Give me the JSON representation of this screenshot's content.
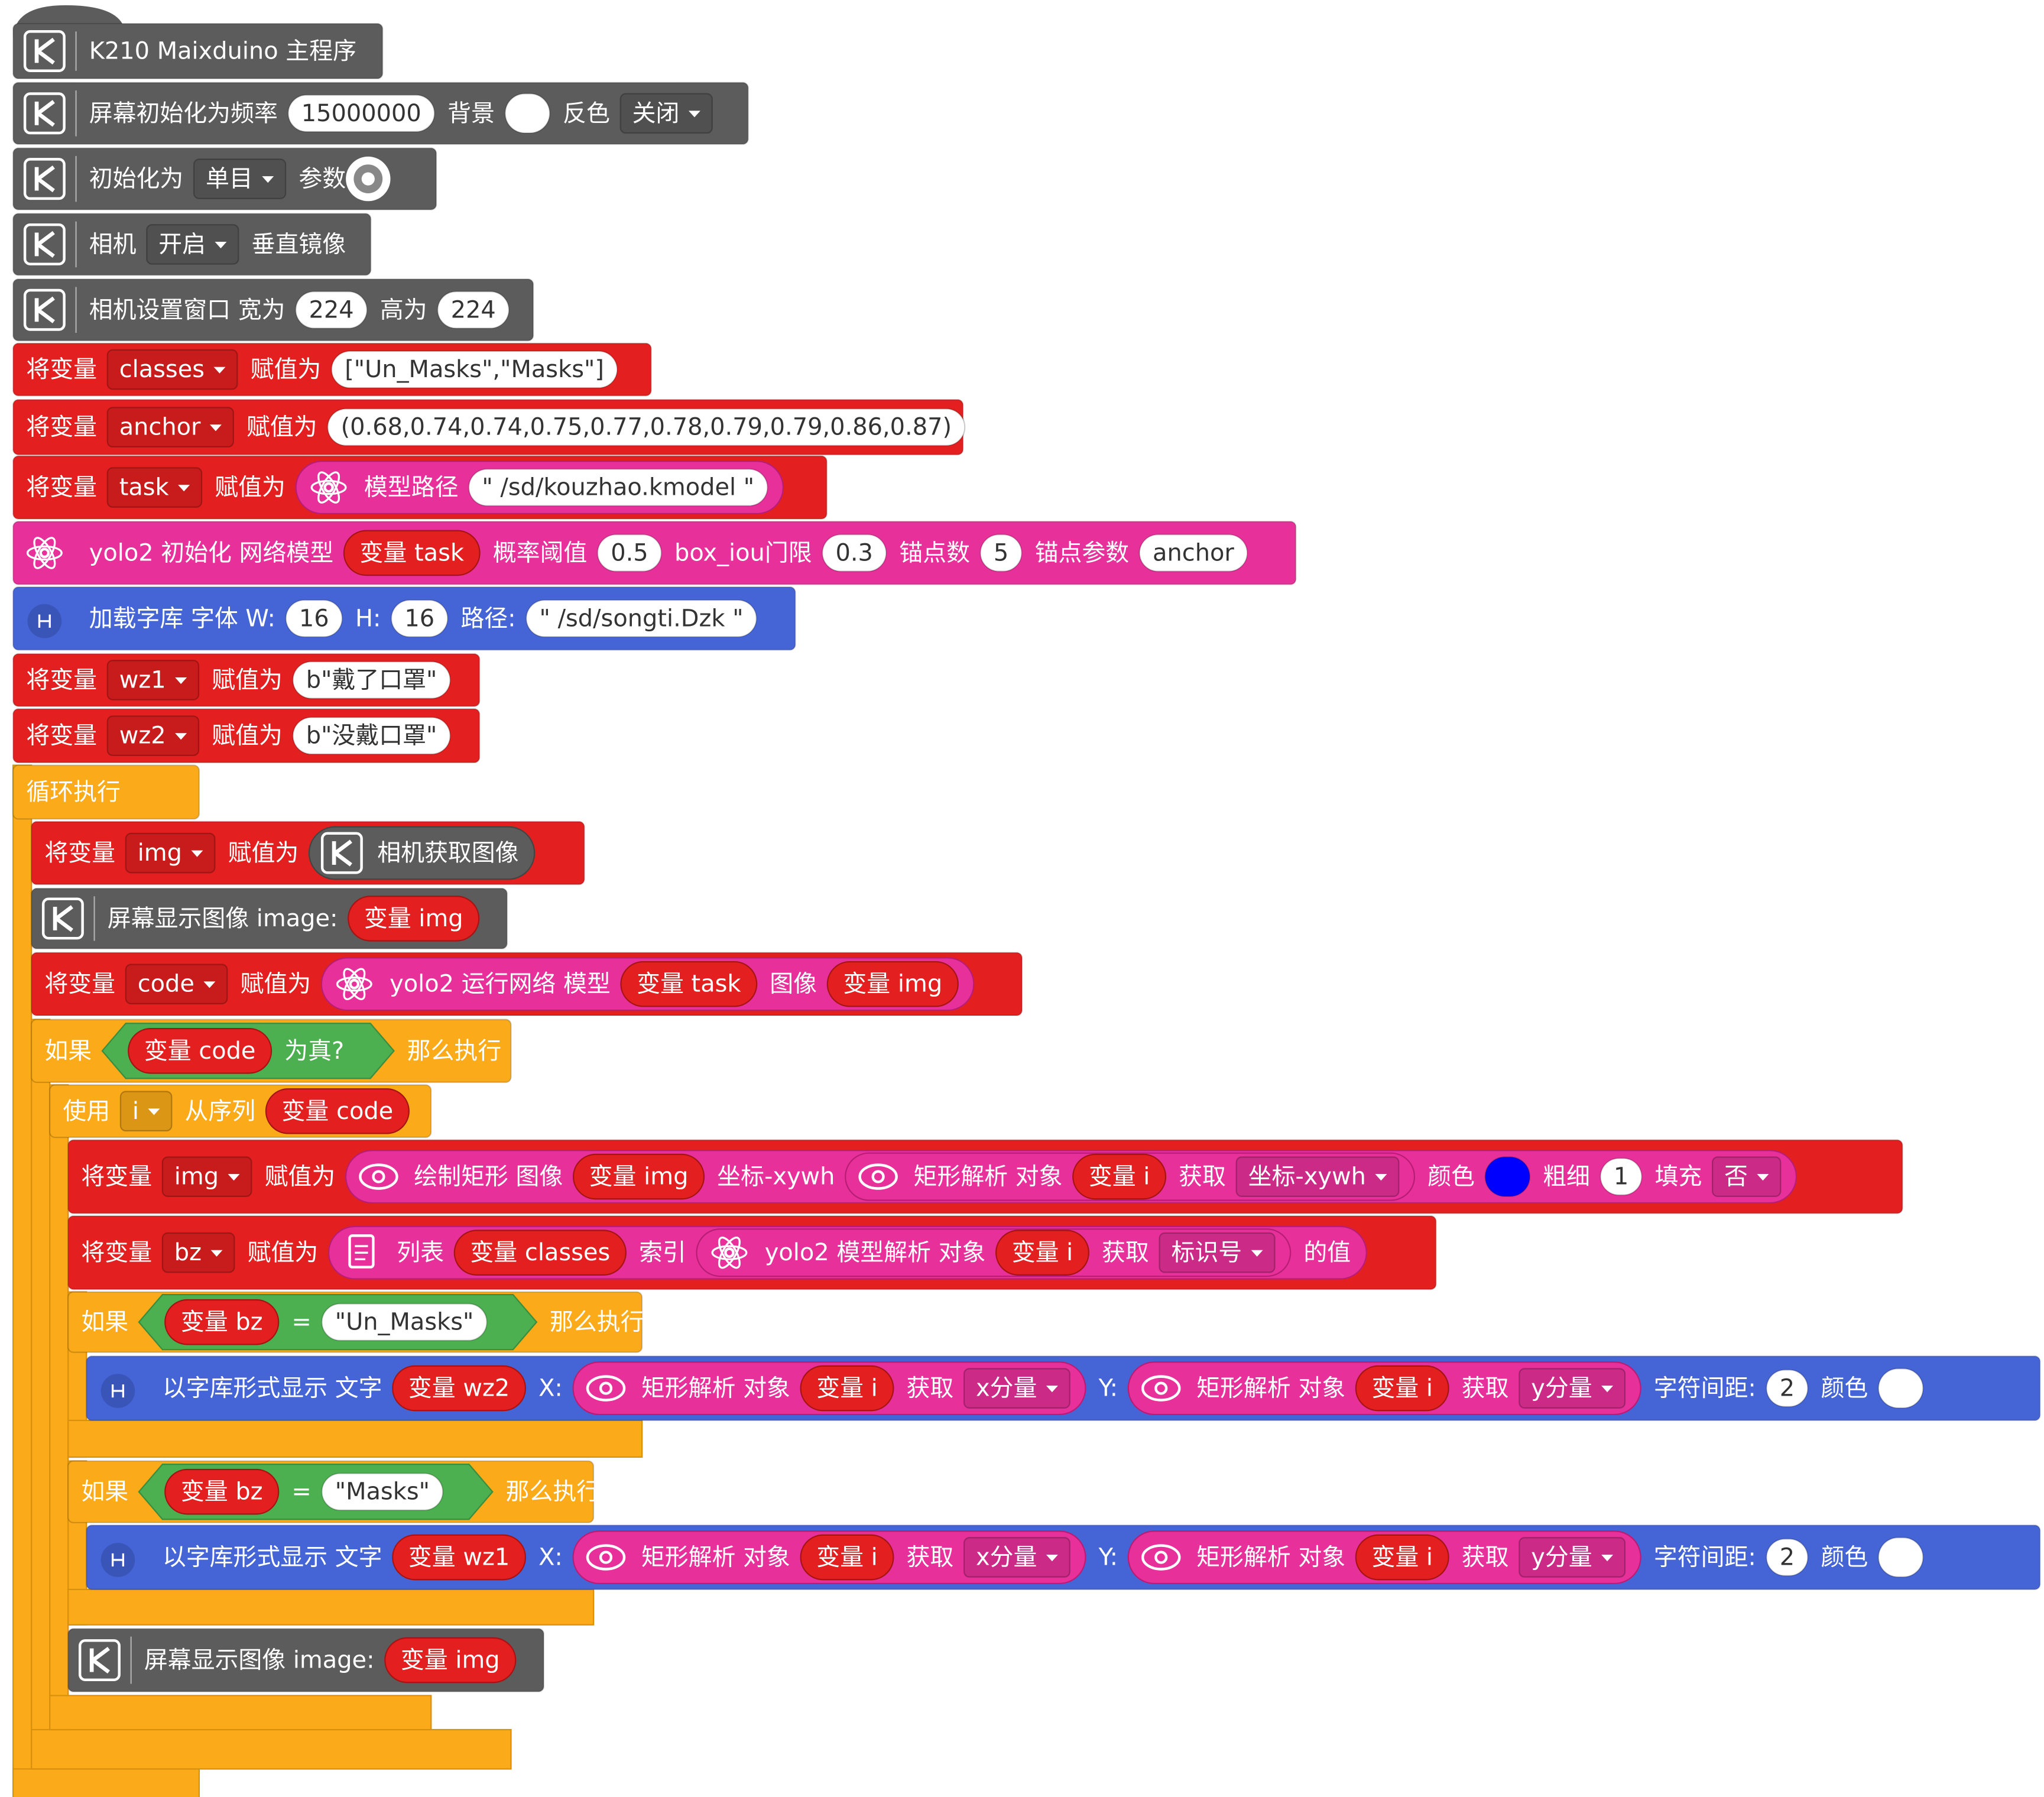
{
  "blocks": [
    {
      "parts": [
        {
          "label": "K210 Maixduino 主程序"
        }
      ]
    },
    {
      "parts": [
        {
          "label": "屏幕初始化为频率"
        },
        {
          "field": "15000000"
        },
        {
          "label": "背景"
        },
        {
          "color": "#ffffff"
        },
        {
          "label": "反色"
        },
        {
          "dropdown": "关闭"
        }
      ]
    },
    {
      "parts": [
        {
          "label": "初始化为"
        },
        {
          "dropdown": "单目"
        },
        {
          "label": "参数"
        }
      ]
    },
    {
      "parts": [
        {
          "label": "相机"
        },
        {
          "dropdown": "开启"
        },
        {
          "label": "垂直镜像"
        }
      ]
    },
    {
      "parts": [
        {
          "label": "相机设置窗口 宽为"
        },
        {
          "field": "224"
        },
        {
          "label": "高为"
        },
        {
          "field": "224"
        }
      ]
    },
    {
      "parts": [
        {
          "label": "将变量"
        },
        {
          "dropdown": "classes"
        },
        {
          "label": "赋值为"
        },
        {
          "field": "[\"Un_Masks\",\"Masks\"]"
        }
      ]
    },
    {
      "parts": [
        {
          "label": "将变量"
        },
        {
          "dropdown": "anchor"
        },
        {
          "label": "赋值为"
        },
        {
          "field": "(0.68,0.74,0.74,0.75,0.77,0.78,0.79,0.79,0.86,0.87)"
        }
      ]
    },
    {
      "parts": [
        {
          "label": "将变量"
        },
        {
          "dropdown": "task"
        },
        {
          "label": "赋值为"
        },
        {
          "block": [
            {
              "label": "模型路径"
            },
            {
              "field": "\" /sd/kouzhao.kmodel \""
            }
          ]
        }
      ]
    },
    {
      "parts": [
        {
          "label": "yolo2 初始化 网络模型"
        },
        {
          "var": "变量 task"
        },
        {
          "label": "概率阈值"
        },
        {
          "field": "0.5"
        },
        {
          "label": "box_iou门限"
        },
        {
          "field": "0.3"
        },
        {
          "label": "锚点数"
        },
        {
          "field": "5"
        },
        {
          "label": "锚点参数"
        },
        {
          "field": "anchor"
        }
      ]
    },
    {
      "parts": [
        {
          "label": "加载字库 字体 W:"
        },
        {
          "field": "16"
        },
        {
          "label": "H:"
        },
        {
          "field": "16"
        },
        {
          "label": "路径:"
        },
        {
          "field": "\" /sd/songti.Dzk \""
        }
      ]
    },
    {
      "parts": [
        {
          "label": "将变量"
        },
        {
          "dropdown": "wz1"
        },
        {
          "label": "赋值为"
        },
        {
          "field": "b\"戴了口罩\""
        }
      ]
    },
    {
      "parts": [
        {
          "label": "将变量"
        },
        {
          "dropdown": "wz2"
        },
        {
          "label": "赋值为"
        },
        {
          "field": "b\"没戴口罩\""
        }
      ]
    },
    {
      "parts": [
        {
          "label": "循环执行"
        }
      ]
    },
    {
      "parts": [
        {
          "label": "将变量"
        },
        {
          "dropdown": "img"
        },
        {
          "label": "赋值为"
        },
        {
          "block": [
            {
              "label": "相机获取图像"
            }
          ]
        }
      ]
    },
    {
      "parts": [
        {
          "label": "屏幕显示图像 image:"
        },
        {
          "var": "变量 img"
        }
      ]
    },
    {
      "parts": [
        {
          "label": "将变量"
        },
        {
          "dropdown": "code"
        },
        {
          "label": "赋值为"
        },
        {
          "block": [
            {
              "label": "yolo2 运行网络 模型"
            },
            {
              "var": "变量 task"
            },
            {
              "label": "图像"
            },
            {
              "var": "变量 img"
            }
          ]
        }
      ]
    },
    {
      "parts": [
        {
          "label": "如果"
        },
        {
          "hex": [
            {
              "var": "变量 code"
            },
            {
              "label": "为真?"
            }
          ]
        },
        {
          "label": "那么执行"
        }
      ]
    },
    {
      "parts": [
        {
          "label": "使用"
        },
        {
          "dropdown": "i"
        },
        {
          "label": "从序列"
        },
        {
          "var": "变量 code"
        }
      ]
    },
    {
      "parts": [
        {
          "label": "将变量"
        },
        {
          "dropdown": "img"
        },
        {
          "label": "赋值为"
        },
        {
          "block": [
            {
              "label": "绘制矩形 图像"
            },
            {
              "var": "变量 img"
            },
            {
              "label": "坐标-xywh"
            },
            {
              "block": [
                {
                  "label": "矩形解析 对象"
                },
                {
                  "var": "变量 i"
                },
                {
                  "label": "获取"
                },
                {
                  "dropdown": "坐标-xywh"
                }
              ]
            },
            {
              "label": "颜色"
            },
            {
              "color": "#0000ff"
            },
            {
              "label": "粗细"
            },
            {
              "field": "1"
            },
            {
              "label": "填充"
            },
            {
              "dropdown": "否"
            }
          ]
        }
      ]
    },
    {
      "parts": [
        {
          "label": "将变量"
        },
        {
          "dropdown": "bz"
        },
        {
          "label": "赋值为"
        },
        {
          "block": [
            {
              "label": "列表"
            },
            {
              "var": "变量 classes"
            },
            {
              "label": "索引"
            },
            {
              "block": [
                {
                  "label": "yolo2 模型解析 对象"
                },
                {
                  "var": "变量 i"
                },
                {
                  "label": "获取"
                },
                {
                  "dropdown": "标识号"
                }
              ]
            },
            {
              "label": "的值"
            }
          ]
        }
      ]
    },
    {
      "parts": [
        {
          "label": "如果"
        },
        {
          "hex": [
            {
              "var": "变量 bz"
            },
            {
              "label": "="
            },
            {
              "field": "\"Un_Masks\""
            }
          ]
        },
        {
          "label": "那么执行"
        }
      ]
    },
    {
      "parts": [
        {
          "label": "以字库形式显示 文字"
        },
        {
          "var": "变量 wz2"
        },
        {
          "label": "X:"
        },
        {
          "block": [
            {
              "label": "矩形解析 对象"
            },
            {
              "var": "变量 i"
            },
            {
              "label": "获取"
            },
            {
              "dropdown": "x分量"
            }
          ]
        },
        {
          "label": "Y:"
        },
        {
          "block": [
            {
              "label": "矩形解析 对象"
            },
            {
              "var": "变量 i"
            },
            {
              "label": "获取"
            },
            {
              "dropdown": "y分量"
            }
          ]
        },
        {
          "label": "字符间距:"
        },
        {
          "field": "2"
        },
        {
          "label": "颜色"
        },
        {
          "color": "#ffffff"
        }
      ]
    },
    {
      "parts": [
        {
          "label": "如果"
        },
        {
          "hex": [
            {
              "var": "变量 bz"
            },
            {
              "label": "="
            },
            {
              "field": "\"Masks\""
            }
          ]
        },
        {
          "label": "那么执行"
        }
      ]
    },
    {
      "parts": [
        {
          "label": "以字库形式显示 文字"
        },
        {
          "var": "变量 wz1"
        },
        {
          "label": "X:"
        },
        {
          "block": [
            {
              "label": "矩形解析 对象"
            },
            {
              "var": "变量 i"
            },
            {
              "label": "获取"
            },
            {
              "dropdown": "x分量"
            }
          ]
        },
        {
          "label": "Y:"
        },
        {
          "block": [
            {
              "label": "矩形解析 对象"
            },
            {
              "var": "变量 i"
            },
            {
              "label": "获取"
            },
            {
              "dropdown": "y分量"
            }
          ]
        },
        {
          "label": "字符间距:"
        },
        {
          "field": "2"
        },
        {
          "label": "颜色"
        },
        {
          "color": "#ffffff"
        }
      ]
    },
    {
      "parts": [
        {
          "label": "屏幕显示图像 image:"
        },
        {
          "var": "变量 img"
        }
      ]
    }
  ]
}
